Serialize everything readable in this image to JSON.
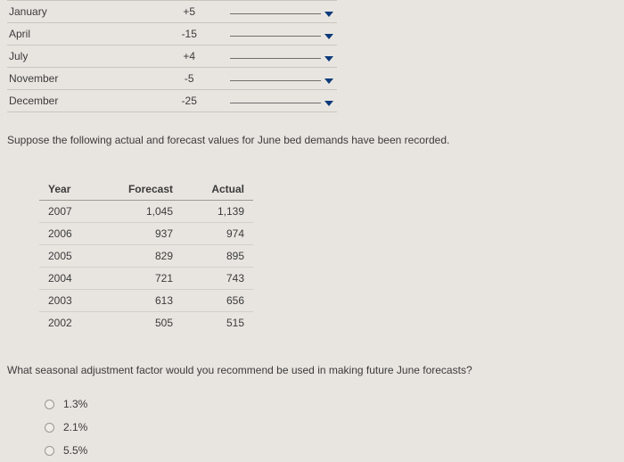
{
  "background_color": "#e8e5e0",
  "text_color": "#333333",
  "font_family": "Arial",
  "font_size": 12,
  "border_color": "#c9c5bd",
  "caret_color": "#0d3a7a",
  "top_table": {
    "rows": [
      {
        "month": "January",
        "value": "+5"
      },
      {
        "month": "April",
        "value": "-15"
      },
      {
        "month": "July",
        "value": "+4"
      },
      {
        "month": "November",
        "value": "-5"
      },
      {
        "month": "December",
        "value": "-25"
      }
    ]
  },
  "paragraph1": "Suppose the following actual and forecast values for June bed demands have been recorded.",
  "fa_table": {
    "headers": {
      "year": "Year",
      "forecast": "Forecast",
      "actual": "Actual"
    },
    "rows": [
      {
        "year": "2007",
        "forecast": "1,045",
        "actual": "1,139"
      },
      {
        "year": "2006",
        "forecast": "937",
        "actual": "974"
      },
      {
        "year": "2005",
        "forecast": "829",
        "actual": "895"
      },
      {
        "year": "2004",
        "forecast": "721",
        "actual": "743"
      },
      {
        "year": "2003",
        "forecast": "613",
        "actual": "656"
      },
      {
        "year": "2002",
        "forecast": "505",
        "actual": "515"
      }
    ]
  },
  "paragraph2": "What seasonal adjustment factor would you recommend be used in making future June forecasts?",
  "options": [
    {
      "label": "1.3%"
    },
    {
      "label": "2.1%"
    },
    {
      "label": "5.5%"
    }
  ]
}
